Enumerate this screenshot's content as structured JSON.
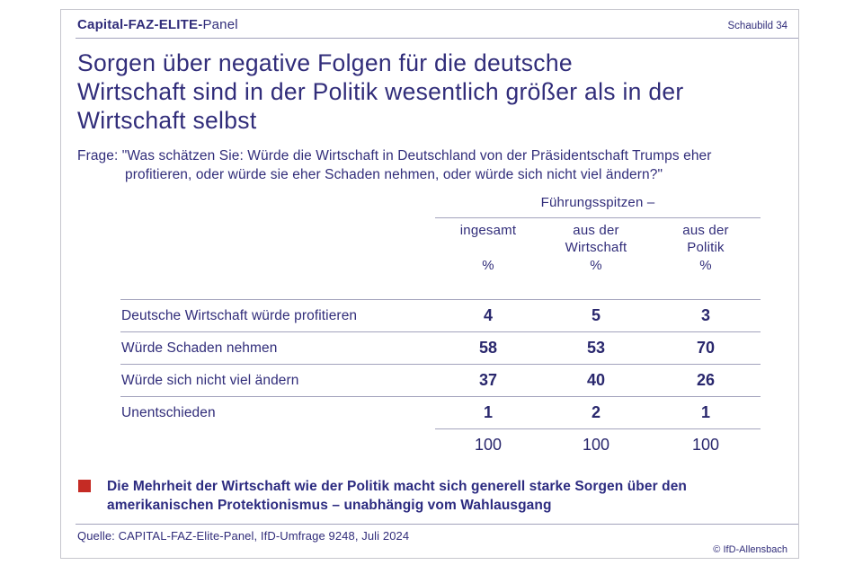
{
  "header": {
    "brand_bold": "Capital-FAZ-ELITE-",
    "brand_regular": "Panel",
    "schaubild": "Schaubild 34"
  },
  "title": {
    "line1": "Sorgen über negative Folgen für die deutsche",
    "line2": "Wirtschaft sind in der Politik wesentlich größer als in der",
    "line3": "Wirtschaft selbst"
  },
  "question": {
    "line1": "Frage: \"Was schätzen Sie: Würde die Wirtschaft in Deutschland von der Präsidentschaft Trumps eher",
    "line2": "profitieren, oder würde sie eher Schaden nehmen, oder würde sich nicht viel ändern?\""
  },
  "table": {
    "group_header": "Führungsspitzen –",
    "unit": "%",
    "columns": [
      {
        "line1": "ingesamt",
        "line2": ""
      },
      {
        "line1": "aus der",
        "line2": "Wirtschaft"
      },
      {
        "line1": "aus der",
        "line2": "Politik"
      }
    ],
    "rows": [
      {
        "label": "Deutsche Wirtschaft würde profitieren",
        "values": [
          "4",
          "5",
          "3"
        ]
      },
      {
        "label": "Würde Schaden nehmen",
        "values": [
          "58",
          "53",
          "70"
        ]
      },
      {
        "label": "Würde sich nicht viel ändern",
        "values": [
          "37",
          "40",
          "26"
        ]
      },
      {
        "label": "Unentschieden",
        "values": [
          "1",
          "2",
          "1"
        ]
      }
    ],
    "totals": [
      "100",
      "100",
      "100"
    ]
  },
  "note": {
    "line1": "Die Mehrheit der Wirtschaft wie der Politik macht sich generell starke Sorgen über den",
    "line2": "amerikanischen Protektionismus – unabhängig vom Wahlausgang"
  },
  "footer": {
    "source": "Quelle: CAPITAL-FAZ-Elite-Panel, IfD-Umfrage 9248, Juli 2024",
    "copyright": "© IfD-Allensbach"
  },
  "colors": {
    "ink": "#312d7a",
    "numbers": "#29276d",
    "rule_line": "#a3a3bc",
    "card_border": "#c6c6cd",
    "bullet_red": "#c52b24"
  },
  "chart_data": {
    "type": "table",
    "title": "Sorgen über negative Folgen für die deutsche Wirtschaft sind in der Politik wesentlich größer als in der Wirtschaft selbst",
    "question": "Frage: \"Was schätzen Sie: Würde die Wirtschaft in Deutschland von der Präsidentschaft Trumps eher profitieren, oder würde sie eher Schaden nehmen, oder würde sich nicht viel ändern?\"",
    "group_header": "Führungsspitzen –",
    "unit": "%",
    "categories": [
      "Deutsche Wirtschaft würde profitieren",
      "Würde Schaden nehmen",
      "Würde sich nicht viel ändern",
      "Unentschieden"
    ],
    "series": [
      {
        "name": "ingesamt",
        "values": [
          4,
          58,
          37,
          1
        ],
        "total": 100
      },
      {
        "name": "aus der Wirtschaft",
        "values": [
          5,
          53,
          40,
          2
        ],
        "total": 100
      },
      {
        "name": "aus der Politik",
        "values": [
          3,
          70,
          26,
          1
        ],
        "total": 100
      }
    ],
    "annotation": "Die Mehrheit der Wirtschaft wie der Politik macht sich generell starke Sorgen über den amerikanischen Protektionismus – unabhängig vom Wahlausgang",
    "source": "Quelle: CAPITAL-FAZ-Elite-Panel, IfD-Umfrage 9248, Juli 2024"
  }
}
